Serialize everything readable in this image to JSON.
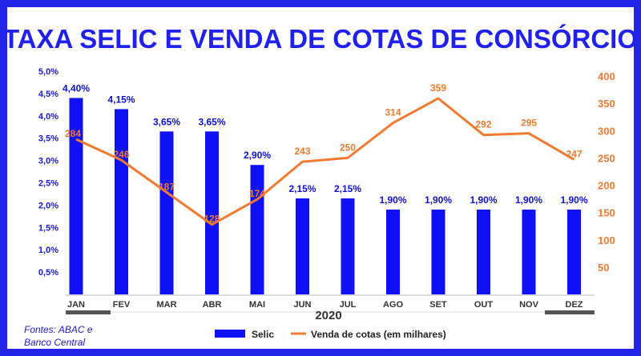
{
  "title": "TAXA SELIC E VENDA DE COTAS DE CONSÓRCIO",
  "source": {
    "line1": "Fontes: ABAC e",
    "line2": "Banco Central"
  },
  "colors": {
    "frame": "#2424e8",
    "title": "#2020f0",
    "bar": "#1010f5",
    "bar_label": "#1010d0",
    "line": "#f07a30",
    "line_label": "#f07a30",
    "left_axis_text": "#1a1ad0",
    "right_axis_text": "#f07a30",
    "year_band": "#555555"
  },
  "chart_data": {
    "type": "bar+line",
    "categories": [
      "JAN",
      "FEV",
      "MAR",
      "ABR",
      "MAI",
      "JUN",
      "JUL",
      "AGO",
      "SET",
      "OUT",
      "NOV",
      "DEZ"
    ],
    "x_group_label": "2020",
    "series": [
      {
        "name": "Selic",
        "type": "bar",
        "axis": "left",
        "values": [
          4.4,
          4.15,
          3.65,
          3.65,
          2.9,
          2.15,
          2.15,
          1.9,
          1.9,
          1.9,
          1.9,
          1.9
        ],
        "labels": [
          "4,40%",
          "4,15%",
          "3,65%",
          "3,65%",
          "2,90%",
          "2,15%",
          "2,15%",
          "1,90%",
          "1,90%",
          "1,90%",
          "1,90%",
          "1,90%"
        ]
      },
      {
        "name": "Venda de cotas (em milhares)",
        "type": "line",
        "axis": "right",
        "values": [
          284,
          246,
          187,
          128,
          174,
          243,
          250,
          314,
          359,
          292,
          295,
          247
        ],
        "labels": [
          "284",
          "246",
          "187",
          "128",
          "174",
          "243",
          "250",
          "314",
          "359",
          "292",
          "295",
          "247"
        ]
      }
    ],
    "left_axis": {
      "ylim": [
        0,
        5.0
      ],
      "ticks": [
        0.5,
        1.0,
        1.5,
        2.0,
        2.5,
        3.0,
        3.5,
        4.0,
        4.5,
        5.0
      ],
      "tick_labels": [
        "0,5%",
        "1,0%",
        "1,5%",
        "2,0%",
        "2,5%",
        "3,0%",
        "3,5%",
        "4,0%",
        "4,5%",
        "5,0%"
      ]
    },
    "right_axis": {
      "ylim": [
        0,
        400
      ],
      "ticks": [
        50,
        100,
        150,
        200,
        250,
        300,
        350,
        400
      ],
      "tick_labels": [
        "50",
        "100",
        "150",
        "200",
        "250",
        "300",
        "350",
        "400"
      ]
    },
    "grid": false,
    "legend": "bottom"
  }
}
